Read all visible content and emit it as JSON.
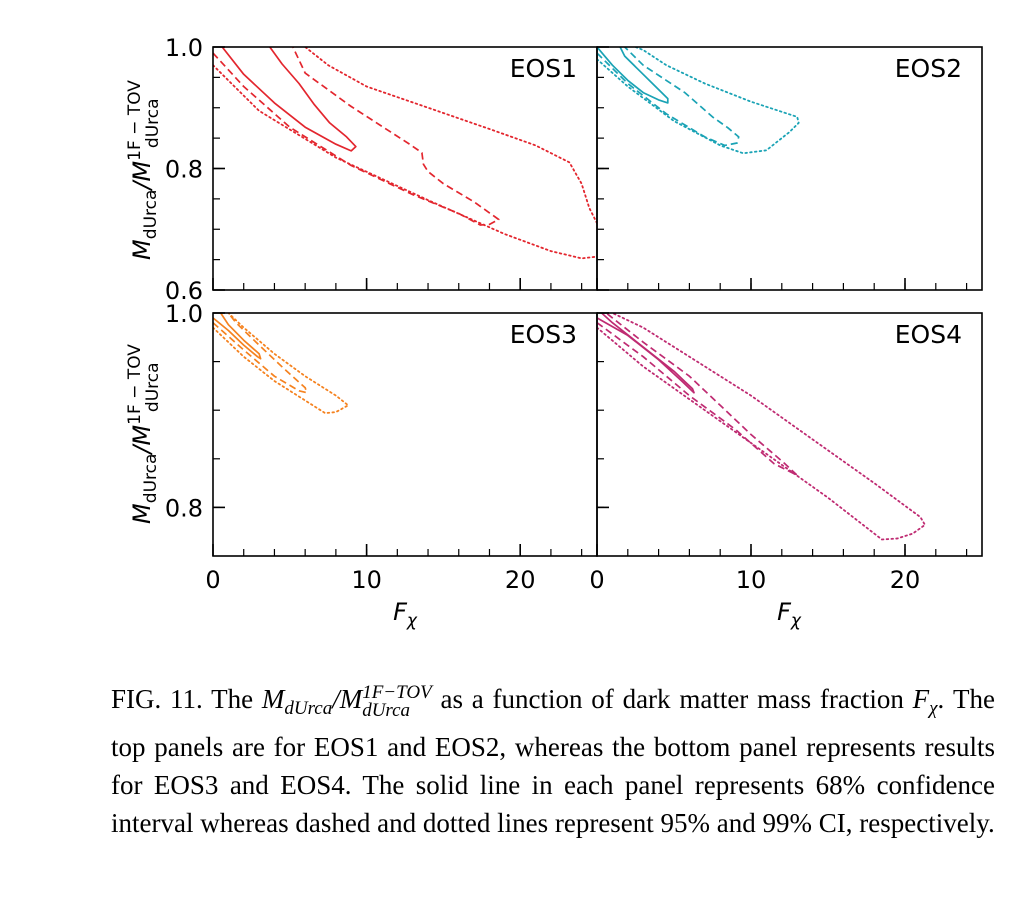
{
  "chart_data": {
    "type": "line",
    "figure_title": "",
    "xlabel": "F_χ",
    "ylabel": "M_dUrca / M_dUrca^(1F−TOV)",
    "line_styles": {
      "solid": "68% CI",
      "dashed": "95% CI",
      "dotted": "99% CI"
    },
    "x_ticks": [
      0,
      10,
      20
    ],
    "panels": [
      {
        "name": "EOS1",
        "color": "#e3262e",
        "xlim": [
          0,
          25
        ],
        "ylim": [
          0.6,
          1.0
        ],
        "y_ticks": [
          0.6,
          0.8,
          1.0
        ],
        "show_xticklabels": false,
        "show_yticklabels": true,
        "contours": [
          {
            "level": "68%",
            "style": "solid",
            "points": [
              [
                0.6,
                1.0
              ],
              [
                2,
                0.955
              ],
              [
                4,
                0.908
              ],
              [
                6,
                0.868
              ],
              [
                8,
                0.84
              ],
              [
                9,
                0.829
              ],
              [
                9.3,
                0.836
              ],
              [
                8.7,
                0.852
              ],
              [
                7.6,
                0.875
              ],
              [
                6.6,
                0.905
              ],
              [
                5.6,
                0.94
              ],
              [
                4.5,
                0.972
              ],
              [
                3.7,
                1.0
              ]
            ]
          },
          {
            "level": "95%",
            "style": "dashed",
            "points": [
              [
                0,
                0.99
              ],
              [
                2,
                0.935
              ],
              [
                5,
                0.868
              ],
              [
                9,
                0.805
              ],
              [
                13,
                0.757
              ],
              [
                16,
                0.726
              ],
              [
                17.4,
                0.707
              ],
              [
                18,
                0.708
              ],
              [
                18.6,
                0.716
              ],
              [
                17,
                0.745
              ],
              [
                15,
                0.775
              ],
              [
                14,
                0.795
              ],
              [
                13.7,
                0.807
              ],
              [
                13.6,
                0.826
              ],
              [
                12.8,
                0.84
              ],
              [
                9,
                0.902
              ],
              [
                6,
                0.957
              ],
              [
                5.2,
                1.0
              ]
            ]
          },
          {
            "level": "99%",
            "style": "dotted",
            "points": [
              [
                0,
                0.97
              ],
              [
                3,
                0.895
              ],
              [
                8,
                0.818
              ],
              [
                14,
                0.748
              ],
              [
                19,
                0.692
              ],
              [
                22,
                0.664
              ],
              [
                24,
                0.652
              ],
              [
                25,
                0.655
              ]
            ]
          },
          {
            "level": "99%",
            "style": "dotted",
            "points": [
              [
                25,
                0.71
              ],
              [
                24.5,
                0.735
              ],
              [
                24,
                0.775
              ],
              [
                23.2,
                0.81
              ],
              [
                21,
                0.838
              ],
              [
                18,
                0.865
              ],
              [
                14,
                0.9
              ],
              [
                10,
                0.935
              ],
              [
                7.5,
                0.97
              ],
              [
                6,
                1.0
              ]
            ]
          }
        ]
      },
      {
        "name": "EOS2",
        "color": "#1aa3b5",
        "xlim": [
          0,
          25
        ],
        "ylim": [
          0.6,
          1.0
        ],
        "y_ticks": [
          0.6,
          0.8,
          1.0
        ],
        "show_xticklabels": false,
        "show_yticklabels": false,
        "contours": [
          {
            "level": "68%",
            "style": "solid",
            "points": [
              [
                0,
                1.0
              ],
              [
                1,
                0.97
              ],
              [
                2,
                0.945
              ],
              [
                3,
                0.925
              ],
              [
                4,
                0.913
              ],
              [
                4.6,
                0.908
              ],
              [
                4.6,
                0.915
              ],
              [
                3.8,
                0.935
              ],
              [
                2.8,
                0.96
              ],
              [
                1.8,
                0.985
              ],
              [
                1.5,
                1.0
              ]
            ]
          },
          {
            "level": "95%",
            "style": "dashed",
            "points": [
              [
                0,
                0.99
              ],
              [
                2,
                0.94
              ],
              [
                4.5,
                0.89
              ],
              [
                7,
                0.852
              ],
              [
                8.3,
                0.838
              ],
              [
                9.1,
                0.842
              ],
              [
                9.2,
                0.852
              ],
              [
                8.5,
                0.867
              ],
              [
                7.5,
                0.885
              ],
              [
                6.6,
                0.905
              ],
              [
                5.7,
                0.925
              ],
              [
                4.5,
                0.945
              ],
              [
                3,
                0.97
              ],
              [
                2,
                0.995
              ],
              [
                1.8,
                1.0
              ]
            ]
          },
          {
            "level": "99%",
            "style": "dotted",
            "points": [
              [
                0,
                0.98
              ],
              [
                2,
                0.935
              ],
              [
                5,
                0.878
              ],
              [
                8,
                0.838
              ],
              [
                9.5,
                0.825
              ],
              [
                11,
                0.83
              ],
              [
                12.5,
                0.86
              ],
              [
                13.1,
                0.875
              ],
              [
                13,
                0.885
              ],
              [
                10,
                0.91
              ],
              [
                7,
                0.94
              ],
              [
                4.5,
                0.97
              ],
              [
                3,
                0.995
              ],
              [
                2.5,
                1.0
              ]
            ]
          }
        ]
      },
      {
        "name": "EOS3",
        "color": "#f5821f",
        "xlim": [
          0,
          25
        ],
        "ylim": [
          0.75,
          1.0
        ],
        "y_ticks": [
          0.8,
          1.0
        ],
        "show_xticklabels": true,
        "show_yticklabels": true,
        "contours": [
          {
            "level": "68%",
            "style": "solid",
            "points": [
              [
                0,
                0.995
              ],
              [
                1,
                0.982
              ],
              [
                2,
                0.967
              ],
              [
                2.9,
                0.955
              ],
              [
                3.1,
                0.953
              ],
              [
                3,
                0.958
              ],
              [
                2,
                0.972
              ],
              [
                1,
                0.988
              ],
              [
                0.5,
                1.0
              ]
            ]
          },
          {
            "level": "95%",
            "style": "dashed",
            "points": [
              [
                0,
                0.99
              ],
              [
                2,
                0.962
              ],
              [
                4,
                0.935
              ],
              [
                5.6,
                0.92
              ],
              [
                6.1,
                0.918
              ],
              [
                6,
                0.923
              ],
              [
                4.6,
                0.943
              ],
              [
                3,
                0.967
              ],
              [
                1.5,
                0.99
              ],
              [
                1,
                1.0
              ]
            ]
          },
          {
            "level": "99%",
            "style": "dotted",
            "points": [
              [
                0,
                0.985
              ],
              [
                2,
                0.955
              ],
              [
                4,
                0.93
              ],
              [
                6,
                0.91
              ],
              [
                7.3,
                0.897
              ],
              [
                8,
                0.898
              ],
              [
                8.8,
                0.905
              ],
              [
                8,
                0.915
              ],
              [
                6,
                0.935
              ],
              [
                4,
                0.958
              ],
              [
                2,
                0.985
              ],
              [
                1,
                1.0
              ]
            ]
          }
        ]
      },
      {
        "name": "EOS4",
        "color": "#bf2b72",
        "xlim": [
          0,
          25
        ],
        "ylim": [
          0.75,
          1.0
        ],
        "y_ticks": [
          0.8,
          1.0
        ],
        "show_xticklabels": true,
        "show_yticklabels": false,
        "contours": [
          {
            "level": "68%",
            "style": "solid",
            "points": [
              [
                0,
                0.995
              ],
              [
                2,
                0.977
              ],
              [
                4,
                0.952
              ],
              [
                5.5,
                0.93
              ],
              [
                6.3,
                0.918
              ],
              [
                6.2,
                0.922
              ],
              [
                5,
                0.94
              ],
              [
                3,
                0.965
              ],
              [
                1,
                0.99
              ],
              [
                0.3,
                1.0
              ]
            ]
          },
          {
            "level": "95%",
            "style": "dashed",
            "points": [
              [
                0,
                0.99
              ],
              [
                3,
                0.955
              ],
              [
                6,
                0.915
              ],
              [
                9,
                0.88
              ],
              [
                11.5,
                0.845
              ],
              [
                13,
                0.833
              ],
              [
                12.2,
                0.845
              ],
              [
                10,
                0.875
              ],
              [
                8,
                0.905
              ],
              [
                6,
                0.935
              ],
              [
                3,
                0.97
              ],
              [
                0.6,
                1.0
              ]
            ]
          },
          {
            "level": "99%",
            "style": "dotted",
            "points": [
              [
                0,
                0.985
              ],
              [
                3,
                0.945
              ],
              [
                7,
                0.9
              ],
              [
                11,
                0.855
              ],
              [
                15,
                0.81
              ],
              [
                18.5,
                0.767
              ],
              [
                19.5,
                0.768
              ],
              [
                20.5,
                0.773
              ],
              [
                21.3,
                0.782
              ],
              [
                21,
                0.79
              ],
              [
                18,
                0.825
              ],
              [
                14,
                0.87
              ],
              [
                10,
                0.915
              ],
              [
                6,
                0.955
              ],
              [
                3,
                0.985
              ],
              [
                1,
                1.0
              ]
            ]
          }
        ]
      }
    ]
  },
  "axes": {
    "ylabel_main": "M",
    "ylabel_sub": "dUrca",
    "ylabel_slash": "/M",
    "ylabel_sup": "1F − TOV",
    "xlabel_main": "F",
    "xlabel_sub": "χ"
  },
  "caption": {
    "lead": "FIG. 11. The ",
    "math_M1": "M",
    "math_sub1": "dUrca",
    "math_slash": "/M",
    "math_sup2": "1F−TOV",
    "math_sub2": "dUrca",
    "after_math": " as a function of dark matter mass fraction ",
    "math_F": "F",
    "math_F_sub": "χ",
    "rest": ". The top panels are for EOS1 and EOS2, whereas the bottom panel represents results for EOS3 and EOS4. The solid line in each panel represents 68% confidence interval whereas dashed and dotted lines represent 95% and 99% CI, respectively."
  }
}
